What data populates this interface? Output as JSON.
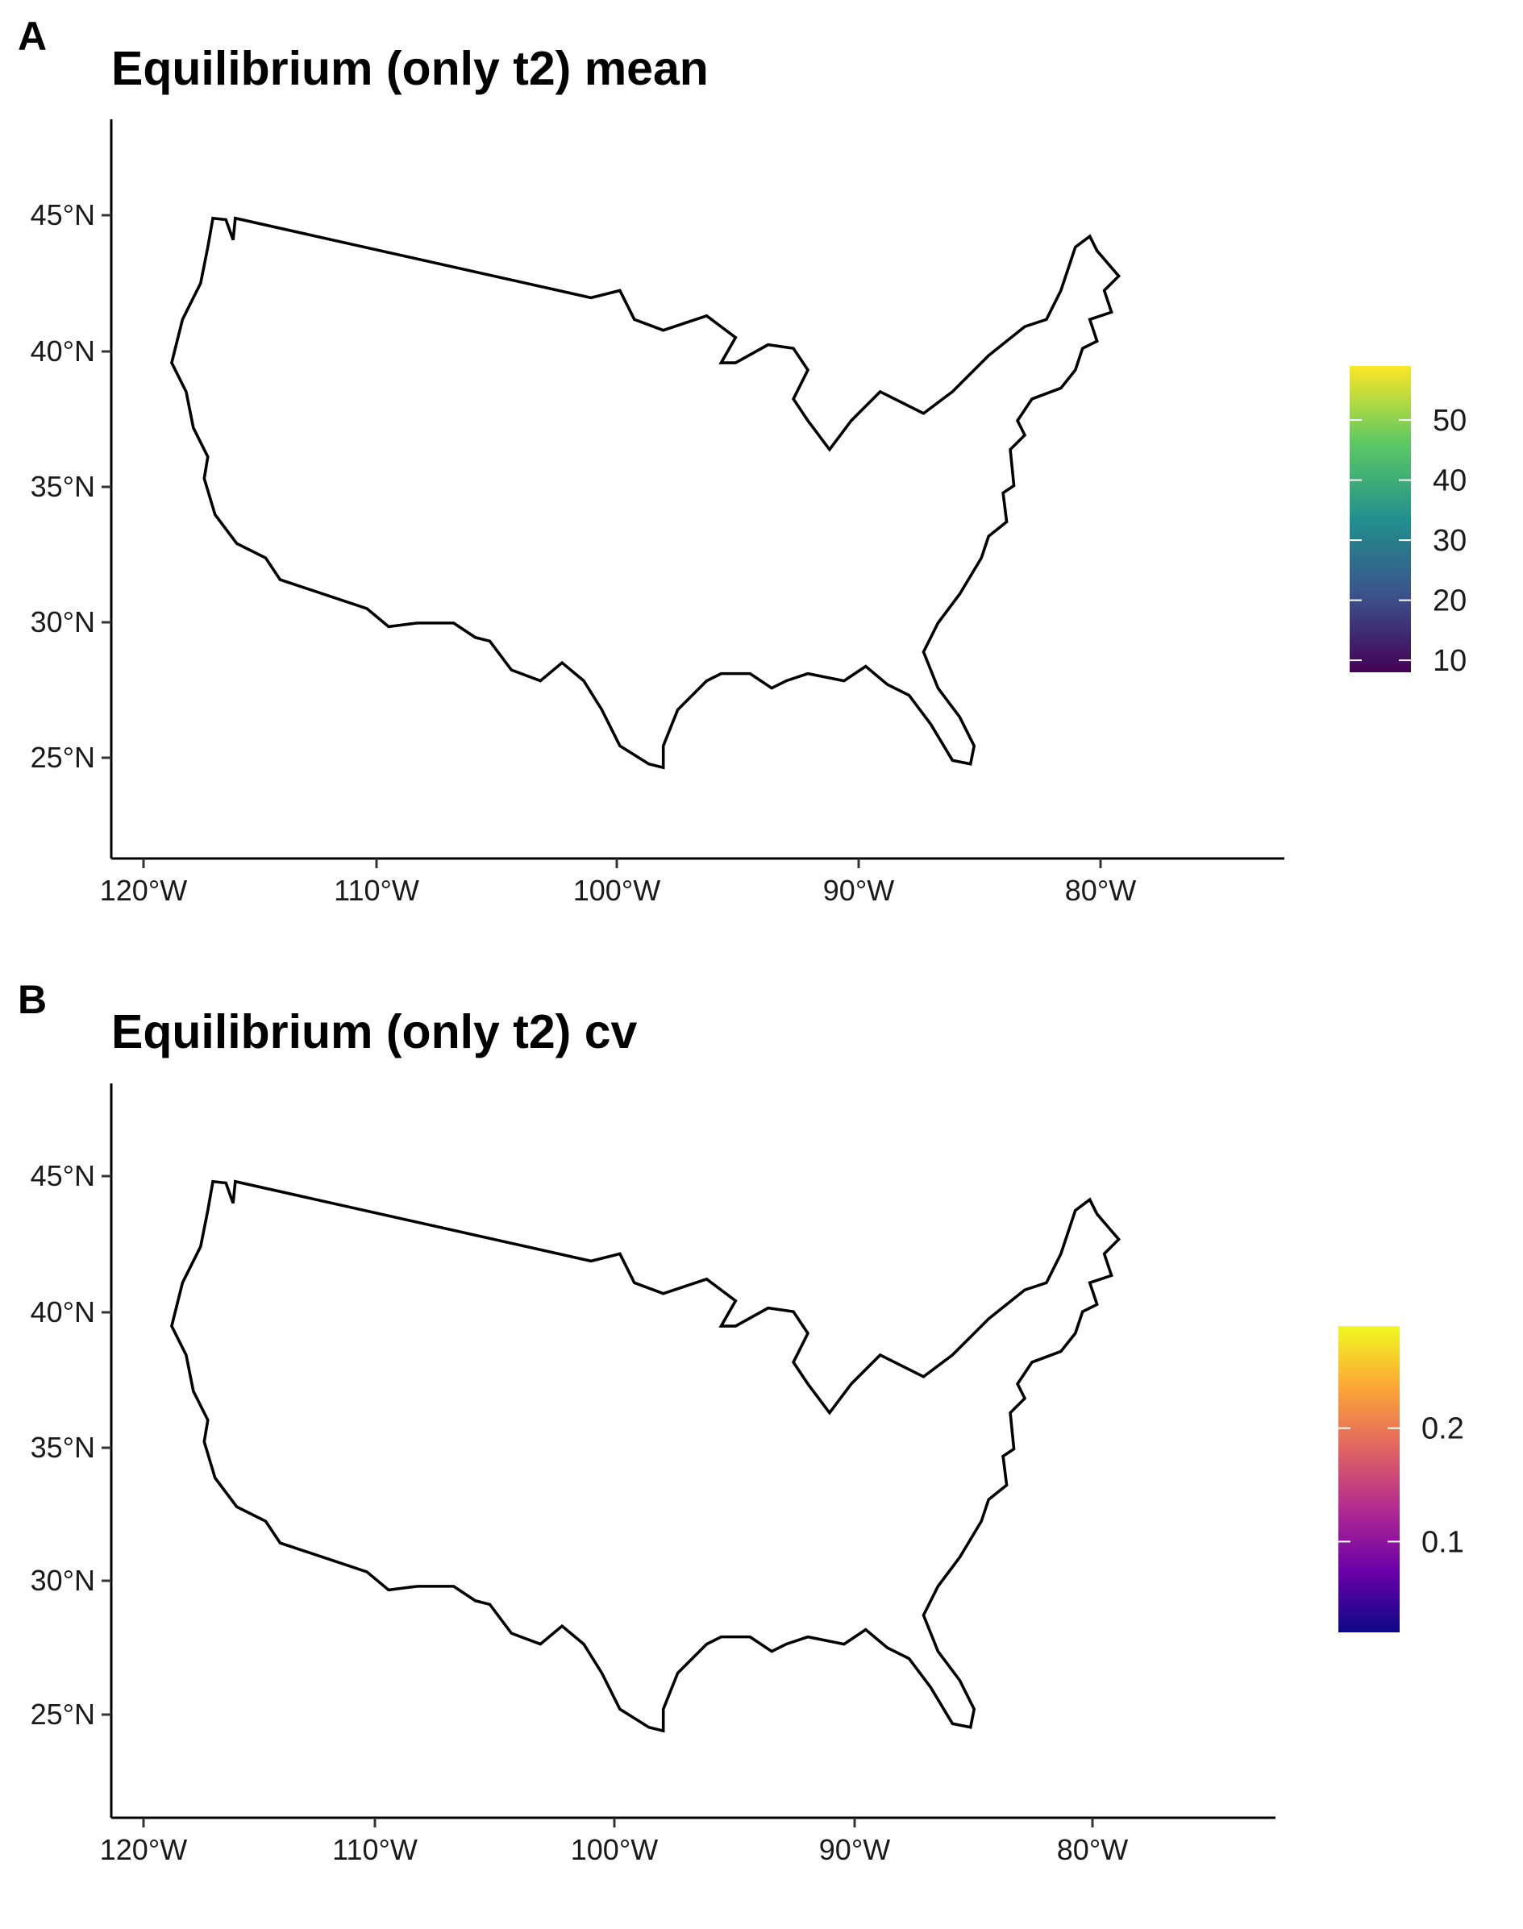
{
  "panels": [
    {
      "letter": "A",
      "title": "Equilibrium (only t2) mean",
      "y_ticks": [
        "45°N",
        "40°N",
        "35°N",
        "30°N",
        "25°N"
      ],
      "x_ticks": [
        "120°W",
        "110°W",
        "100°W",
        "90°W",
        "80°W"
      ],
      "colorscale": "viridis",
      "legend": {
        "labels": [
          "50",
          "40",
          "30",
          "20",
          "10"
        ],
        "values": [
          50,
          40,
          30,
          20,
          10
        ],
        "min": 8,
        "max": 59,
        "colors": [
          "#440154",
          "#3b528b",
          "#21908d",
          "#5dc963",
          "#fde725"
        ]
      },
      "fill_colors": {
        "land_base": "#2a7b8e",
        "west_dry": "#3b2d6e",
        "southwest": "#3d1a5c",
        "plains": "#36447f",
        "east_forest": "#5cbf66",
        "southeast": "#a3d944",
        "northeast": "#2a9a8c"
      }
    },
    {
      "letter": "B",
      "title": "Equilibrium (only t2) cv",
      "y_ticks": [
        "45°N",
        "40°N",
        "35°N",
        "30°N",
        "25°N"
      ],
      "x_ticks": [
        "120°W",
        "110°W",
        "100°W",
        "90°W",
        "80°W"
      ],
      "colorscale": "plasma",
      "legend": {
        "labels": [
          "0.2",
          "0.1"
        ],
        "values": [
          0.2,
          0.1
        ],
        "min": 0.02,
        "max": 0.29,
        "colors": [
          "#0d0887",
          "#6a00a8",
          "#b12a90",
          "#e16462",
          "#fca636",
          "#f0f921"
        ]
      },
      "fill_colors": {
        "land_base": "#4a0fa2",
        "west_dry": "#6513a3",
        "southwest": "#7b1aa0",
        "plains": "#3a0d9a",
        "east_forest": "#2c0c94",
        "southeast": "#5a10a4",
        "northeast": "#3d0d9c"
      }
    }
  ]
}
